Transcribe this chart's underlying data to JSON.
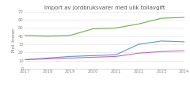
{
  "title": "Import av jordbruksvarer med ulik tollavgift",
  "ylabel": "Mrd. kroner",
  "years": [
    2017,
    2018,
    2019,
    2020,
    2021,
    2022,
    2023,
    2024
  ],
  "series": {
    "Friksjon til tolltariff": [
      11,
      13,
      15,
      16,
      17,
      30,
      34,
      33
    ],
    "Andre tollfrie": [
      41,
      40,
      41,
      49,
      50,
      55,
      62,
      63
    ],
    "Med tollavgiftssats": [
      11,
      12,
      13,
      14,
      15,
      19,
      21,
      22
    ]
  },
  "colors": {
    "Friksjon til tolltariff": "#5B9BD5",
    "Andre tollfrie": "#70AD47",
    "Med tollavgiftssats": "#CC66BB"
  },
  "ylim": [
    0,
    70
  ],
  "yticks": [
    0,
    10,
    20,
    30,
    40,
    50,
    60,
    70
  ],
  "background_color": "#ffffff",
  "title_fontsize": 5.0,
  "legend_fontsize": 3.6,
  "ylabel_fontsize": 3.8,
  "tick_fontsize": 3.8
}
